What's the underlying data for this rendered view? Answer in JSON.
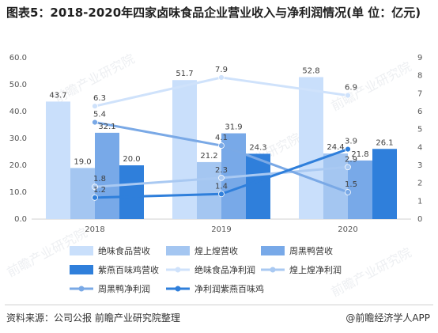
{
  "title": "图表5：2018-2020年四家卤味食品企业营业收入与净利润情况(单 位：亿元)",
  "source": "资料来源：公司公报 前瞻产业研究院整理",
  "credit": "@前瞻经济学人APP",
  "watermark": "前瞻产业研究院",
  "chart_data": {
    "type": "bar",
    "categories": [
      "2018",
      "2019",
      "2020"
    ],
    "left_axis": {
      "ticks": [
        "0.0",
        "10.0",
        "20.0",
        "30.0",
        "40.0",
        "50.0",
        "60.0"
      ],
      "ylim": [
        0,
        60
      ]
    },
    "right_axis": {
      "ticks": [
        "0",
        "1",
        "2",
        "3",
        "4",
        "5",
        "6",
        "7",
        "8",
        "9"
      ],
      "ylim": [
        0,
        9
      ]
    },
    "bar_series": [
      {
        "name": "绝味食品营收",
        "values": [
          43.7,
          51.7,
          52.8
        ],
        "labels": [
          "43.7",
          "51.7",
          "52.8"
        ],
        "color": "#c9dffb"
      },
      {
        "name": "煌上煌营收",
        "values": [
          19.0,
          21.2,
          24.4
        ],
        "labels": [
          "19.0",
          "21.2",
          "24.4"
        ],
        "color": "#a4c6f1"
      },
      {
        "name": "周黑鸭营收",
        "values": [
          32.1,
          31.9,
          21.8
        ],
        "labels": [
          "32.1",
          "31.9",
          "21.8"
        ],
        "color": "#78a9e8"
      },
      {
        "name": "紫燕百味鸡营收",
        "values": [
          20.0,
          24.3,
          26.1
        ],
        "labels": [
          "20.0",
          "24.3",
          "26.1"
        ],
        "color": "#2f7fdb"
      }
    ],
    "line_series": [
      {
        "name": "绝味食品净利润",
        "values": [
          6.3,
          7.9,
          6.9
        ],
        "labels": [
          "6.3",
          "7.9",
          "6.9"
        ],
        "color": "#cfe2fb"
      },
      {
        "name": "煌上煌净利润",
        "values": [
          1.8,
          2.3,
          2.9
        ],
        "labels": [
          "1.8",
          "2.3",
          "2.9"
        ],
        "color": "#a9c9f2"
      },
      {
        "name": "周黑鸭净利润",
        "values": [
          5.4,
          4.1,
          1.5
        ],
        "labels": [
          "5.4",
          "4.1",
          "1.5"
        ],
        "color": "#7aa9e6"
      },
      {
        "name": "净利润紫燕百味鸡",
        "values": [
          1.2,
          1.4,
          3.9
        ],
        "labels": [
          "1.2",
          "1.4",
          "3.9"
        ],
        "color": "#2f7fdb"
      }
    ],
    "legend": {
      "position": "bottom",
      "rows": [
        [
          {
            "name": "绝味食品营收",
            "kind": "bar",
            "color": "#c9dffb"
          },
          {
            "name": "煌上煌营收",
            "kind": "bar",
            "color": "#a4c6f1"
          },
          {
            "name": "周黑鸭营收",
            "kind": "bar",
            "color": "#78a9e8"
          }
        ],
        [
          {
            "name": "紫燕百味鸡营收",
            "kind": "bar",
            "color": "#2f7fdb"
          },
          {
            "name": "绝味食品净利润",
            "kind": "line",
            "color": "#cfe2fb"
          },
          {
            "name": "煌上煌净利润",
            "kind": "line",
            "color": "#a9c9f2"
          }
        ],
        [
          {
            "name": "周黑鸭净利润",
            "kind": "line",
            "color": "#7aa9e6"
          },
          {
            "name": "净利润紫燕百味鸡",
            "kind": "line",
            "color": "#2f7fdb"
          }
        ]
      ]
    },
    "grid": false
  }
}
